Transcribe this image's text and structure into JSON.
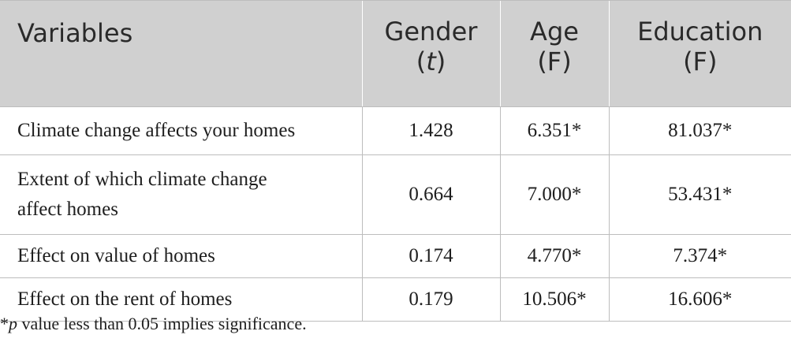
{
  "table": {
    "headers": [
      {
        "line1": "Variables",
        "line2": "",
        "line2_italic": ""
      },
      {
        "line1": "Gender",
        "line2_open": "(",
        "line2_italic": "t",
        "line2_close": ")"
      },
      {
        "line1": "Age",
        "line2": "(F)"
      },
      {
        "line1": "Education",
        "line2": "(F)"
      }
    ],
    "rows": [
      {
        "label": "Climate change affects your homes",
        "gender": "1.428",
        "age": "6.351*",
        "education": "81.037*"
      },
      {
        "label_line1": "Extent of which climate change",
        "label_line2": "affect homes",
        "gender": "0.664",
        "age": "7.000*",
        "education": "53.431*"
      },
      {
        "label": "Effect on value of homes",
        "gender": "0.174",
        "age": "4.770*",
        "education": "7.374*"
      },
      {
        "label": "Effect on the rent of homes",
        "gender": "0.179",
        "age": "10.506*",
        "education": "16.606*"
      }
    ]
  },
  "footnote": {
    "star": "*",
    "p": "p",
    "text": " value less than 0.05 implies significance."
  }
}
